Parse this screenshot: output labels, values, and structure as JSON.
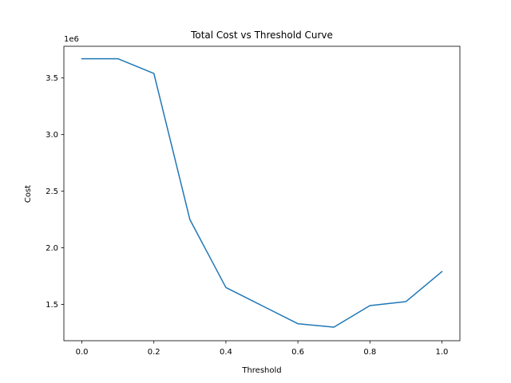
{
  "chart_data": {
    "type": "line",
    "title": "Total Cost vs Threshold Curve",
    "xlabel": "Threshold",
    "ylabel": "Cost",
    "y_offset_label": "1e6",
    "xlim": [
      -0.05,
      1.05
    ],
    "ylim": [
      1.18,
      3.78
    ],
    "x_ticks": [
      0.0,
      0.2,
      0.4,
      0.6,
      0.8,
      1.0
    ],
    "x_tick_labels": [
      "0.0",
      "0.2",
      "0.4",
      "0.6",
      "0.8",
      "1.0"
    ],
    "y_ticks": [
      1.5,
      2.0,
      2.5,
      3.0,
      3.5
    ],
    "y_tick_labels": [
      "1.5",
      "2.0",
      "2.5",
      "3.0",
      "3.5"
    ],
    "grid": false,
    "series": [
      {
        "color": "#1f77b4",
        "x": [
          0.0,
          0.1,
          0.2,
          0.3,
          0.4,
          0.5,
          0.6,
          0.7,
          0.8,
          0.9,
          1.0
        ],
        "y": [
          3.67,
          3.67,
          3.54,
          2.25,
          1.65,
          1.49,
          1.33,
          1.3,
          1.49,
          1.525,
          1.79
        ]
      }
    ]
  }
}
